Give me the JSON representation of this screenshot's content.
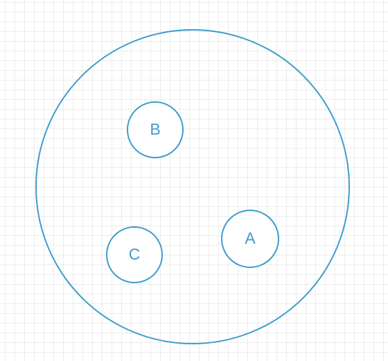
{
  "diagram": {
    "stroke_color": "#3d9ccc",
    "nodes": [
      {
        "id": "B",
        "label": "B"
      },
      {
        "id": "A",
        "label": "A"
      },
      {
        "id": "C",
        "label": "C"
      }
    ]
  }
}
